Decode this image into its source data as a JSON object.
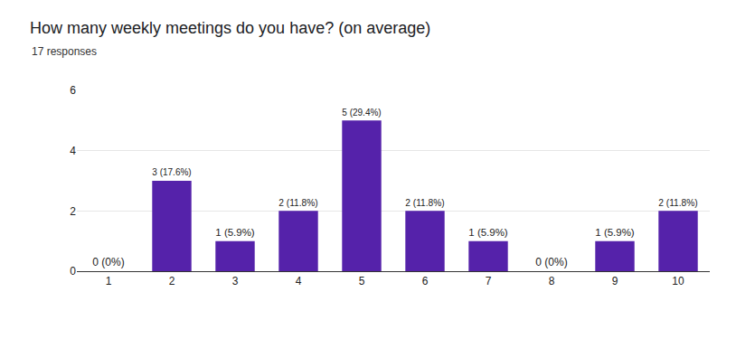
{
  "chart_data": {
    "type": "bar",
    "title": "How many weekly meetings do you have? (on average)",
    "subtitle": "17 responses",
    "categories": [
      "1",
      "2",
      "3",
      "4",
      "5",
      "6",
      "7",
      "8",
      "9",
      "10"
    ],
    "values": [
      0,
      3,
      1,
      2,
      5,
      2,
      1,
      0,
      1,
      2
    ],
    "value_labels": [
      "0 (0%)",
      "3 (17.6%)",
      "1 (5.9%)",
      "2 (11.8%)",
      "5 (29.4%)",
      "2 (11.8%)",
      "1 (5.9%)",
      "0 (0%)",
      "1 (5.9%)",
      "2 (11.8%)"
    ],
    "color": "#5522aa",
    "ylim": [
      0,
      6
    ],
    "yticks": [
      0,
      2,
      4,
      6
    ],
    "grid": true,
    "data_labels": true
  }
}
